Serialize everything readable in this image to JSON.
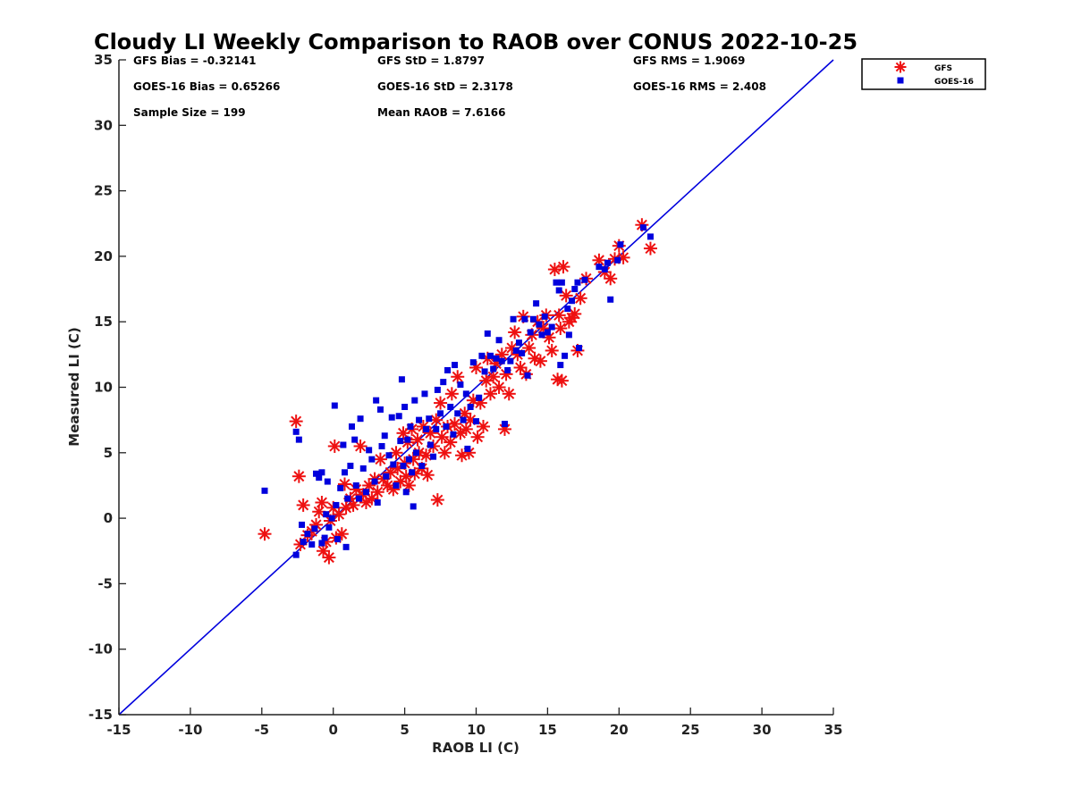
{
  "chart_data": {
    "type": "scatter",
    "title": "Cloudy LI Weekly Comparison to RAOB over CONUS 2022-10-25",
    "xlabel": "RAOB LI (C)",
    "ylabel": "Measured LI (C)",
    "xlim": [
      -15,
      35
    ],
    "ylim": [
      -15,
      35
    ],
    "xticks": [
      "-15",
      "-10",
      "-5",
      "0",
      "5",
      "10",
      "15",
      "20",
      "25",
      "30",
      "35"
    ],
    "yticks": [
      "-15",
      "-10",
      "-5",
      "0",
      "5",
      "10",
      "15",
      "20",
      "25",
      "30",
      "35"
    ],
    "grid": false,
    "legend_position": "outside-top-right",
    "reference_line": {
      "x": [
        -15,
        35
      ],
      "y": [
        -15,
        35
      ],
      "color": "#0000dd"
    },
    "stats": [
      [
        "GFS Bias = -0.32141",
        "GFS StD = 1.8797",
        "GFS RMS = 1.9069"
      ],
      [
        "GOES-16 Bias = 0.65266",
        "GOES-16 StD = 2.3178",
        "GOES-16 RMS = 2.408"
      ],
      [
        "Sample Size = 199",
        "Mean RAOB = 7.6166",
        ""
      ]
    ],
    "series": [
      {
        "name": "GFS",
        "marker": "asterisk",
        "color": "#ee1111",
        "points": [
          [
            -4.8,
            -1.2
          ],
          [
            -2.6,
            7.4
          ],
          [
            -2.4,
            3.2
          ],
          [
            -2.3,
            -2.0
          ],
          [
            -2.1,
            1.0
          ],
          [
            -1.8,
            -1.3
          ],
          [
            -1.5,
            -1.0
          ],
          [
            -1.2,
            -0.5
          ],
          [
            -1.0,
            0.5
          ],
          [
            -0.8,
            1.2
          ],
          [
            -0.7,
            -2.5
          ],
          [
            -0.5,
            -1.8
          ],
          [
            -0.3,
            -3.0
          ],
          [
            -0.2,
            -0.2
          ],
          [
            0.0,
            0.8
          ],
          [
            0.1,
            5.5
          ],
          [
            0.2,
            -1.5
          ],
          [
            0.4,
            0.3
          ],
          [
            0.6,
            -1.2
          ],
          [
            0.8,
            2.6
          ],
          [
            0.9,
            0.8
          ],
          [
            1.2,
            1.5
          ],
          [
            1.4,
            1.0
          ],
          [
            1.6,
            2.2
          ],
          [
            1.9,
            5.5
          ],
          [
            2.1,
            1.8
          ],
          [
            2.3,
            1.2
          ],
          [
            2.5,
            2.5
          ],
          [
            2.7,
            1.5
          ],
          [
            2.9,
            3.0
          ],
          [
            3.1,
            2.0
          ],
          [
            3.3,
            4.5
          ],
          [
            3.5,
            3.0
          ],
          [
            3.8,
            2.5
          ],
          [
            4.0,
            3.5
          ],
          [
            4.2,
            2.2
          ],
          [
            4.4,
            5.0
          ],
          [
            4.5,
            3.8
          ],
          [
            4.7,
            2.8
          ],
          [
            4.9,
            6.5
          ],
          [
            5.0,
            4.2
          ],
          [
            5.1,
            3.2
          ],
          [
            5.2,
            5.8
          ],
          [
            5.3,
            2.5
          ],
          [
            5.5,
            6.8
          ],
          [
            5.6,
            4.5
          ],
          [
            5.7,
            3.4
          ],
          [
            5.9,
            6.0
          ],
          [
            6.0,
            5.0
          ],
          [
            6.2,
            3.8
          ],
          [
            6.3,
            7.0
          ],
          [
            6.5,
            4.8
          ],
          [
            6.6,
            3.3
          ],
          [
            6.8,
            6.5
          ],
          [
            7.0,
            5.5
          ],
          [
            7.2,
            7.5
          ],
          [
            7.3,
            1.4
          ],
          [
            7.5,
            8.8
          ],
          [
            7.6,
            6.2
          ],
          [
            7.8,
            5.0
          ],
          [
            8.0,
            7.0
          ],
          [
            8.2,
            5.8
          ],
          [
            8.3,
            9.5
          ],
          [
            8.5,
            7.2
          ],
          [
            8.7,
            10.8
          ],
          [
            8.9,
            6.5
          ],
          [
            9.0,
            4.8
          ],
          [
            9.2,
            8.0
          ],
          [
            9.3,
            6.8
          ],
          [
            9.5,
            5.0
          ],
          [
            9.6,
            7.5
          ],
          [
            9.8,
            9.0
          ],
          [
            10.0,
            11.5
          ],
          [
            10.1,
            6.2
          ],
          [
            10.3,
            8.8
          ],
          [
            10.5,
            7.0
          ],
          [
            10.7,
            10.5
          ],
          [
            10.8,
            12.2
          ],
          [
            11.0,
            9.5
          ],
          [
            11.2,
            10.8
          ],
          [
            11.4,
            11.8
          ],
          [
            11.6,
            10.0
          ],
          [
            11.8,
            12.5
          ],
          [
            12.0,
            6.8
          ],
          [
            12.1,
            11.0
          ],
          [
            12.3,
            9.5
          ],
          [
            12.5,
            13.0
          ],
          [
            12.7,
            14.2
          ],
          [
            12.9,
            12.5
          ],
          [
            13.1,
            11.5
          ],
          [
            13.3,
            15.4
          ],
          [
            13.5,
            11.0
          ],
          [
            13.7,
            13.0
          ],
          [
            13.9,
            14.0
          ],
          [
            14.1,
            12.2
          ],
          [
            14.3,
            15.0
          ],
          [
            14.5,
            12.0
          ],
          [
            14.7,
            14.5
          ],
          [
            14.9,
            15.5
          ],
          [
            15.1,
            13.8
          ],
          [
            15.3,
            12.8
          ],
          [
            15.5,
            19.0
          ],
          [
            15.7,
            10.6
          ],
          [
            15.8,
            15.5
          ],
          [
            15.9,
            14.5
          ],
          [
            16.0,
            10.5
          ],
          [
            16.1,
            19.2
          ],
          [
            16.3,
            17.0
          ],
          [
            16.5,
            15.0
          ],
          [
            16.7,
            15.3
          ],
          [
            16.9,
            15.6
          ],
          [
            17.1,
            12.8
          ],
          [
            17.3,
            16.8
          ],
          [
            17.7,
            18.3
          ],
          [
            18.6,
            19.7
          ],
          [
            19.0,
            18.8
          ],
          [
            19.4,
            18.3
          ],
          [
            19.7,
            19.8
          ],
          [
            20.0,
            20.8
          ],
          [
            20.3,
            19.9
          ],
          [
            21.6,
            22.4
          ],
          [
            22.2,
            20.6
          ]
        ]
      },
      {
        "name": "GOES-16",
        "marker": "square",
        "color": "#0000dd",
        "points": [
          [
            -4.8,
            2.1
          ],
          [
            -2.6,
            6.6
          ],
          [
            -2.4,
            6.0
          ],
          [
            -2.6,
            -2.8
          ],
          [
            -2.2,
            -0.5
          ],
          [
            -2.1,
            -1.8
          ],
          [
            -1.8,
            -1.2
          ],
          [
            -1.5,
            -2.0
          ],
          [
            -1.3,
            -0.8
          ],
          [
            -1.2,
            3.4
          ],
          [
            -1.0,
            3.1
          ],
          [
            -0.8,
            3.5
          ],
          [
            -0.8,
            -1.9
          ],
          [
            -0.6,
            -1.5
          ],
          [
            -0.5,
            0.3
          ],
          [
            -0.4,
            2.8
          ],
          [
            -0.3,
            -0.7
          ],
          [
            -0.1,
            0.0
          ],
          [
            0.1,
            8.6
          ],
          [
            0.2,
            1.0
          ],
          [
            0.3,
            -1.6
          ],
          [
            0.5,
            2.3
          ],
          [
            0.7,
            5.6
          ],
          [
            0.8,
            3.5
          ],
          [
            0.9,
            -2.2
          ],
          [
            1.0,
            1.5
          ],
          [
            1.2,
            4.0
          ],
          [
            1.3,
            7.0
          ],
          [
            1.5,
            6.0
          ],
          [
            1.6,
            2.5
          ],
          [
            1.8,
            1.5
          ],
          [
            1.9,
            7.6
          ],
          [
            2.1,
            3.8
          ],
          [
            2.3,
            2.0
          ],
          [
            2.5,
            5.2
          ],
          [
            2.7,
            4.5
          ],
          [
            2.9,
            2.8
          ],
          [
            3.0,
            9.0
          ],
          [
            3.1,
            1.2
          ],
          [
            3.3,
            8.3
          ],
          [
            3.4,
            5.5
          ],
          [
            3.6,
            6.3
          ],
          [
            3.7,
            3.2
          ],
          [
            3.9,
            4.8
          ],
          [
            4.1,
            7.7
          ],
          [
            4.2,
            4.1
          ],
          [
            4.4,
            2.5
          ],
          [
            4.6,
            7.8
          ],
          [
            4.7,
            5.9
          ],
          [
            4.8,
            10.6
          ],
          [
            4.9,
            4.0
          ],
          [
            5.0,
            8.5
          ],
          [
            5.1,
            2.0
          ],
          [
            5.2,
            6.0
          ],
          [
            5.3,
            4.5
          ],
          [
            5.4,
            7.0
          ],
          [
            5.5,
            3.5
          ],
          [
            5.6,
            0.9
          ],
          [
            5.7,
            9.0
          ],
          [
            5.8,
            5.0
          ],
          [
            6.0,
            7.5
          ],
          [
            6.2,
            4.0
          ],
          [
            6.4,
            9.5
          ],
          [
            6.5,
            6.8
          ],
          [
            6.7,
            7.6
          ],
          [
            6.8,
            5.6
          ],
          [
            7.0,
            4.7
          ],
          [
            7.2,
            6.8
          ],
          [
            7.3,
            9.8
          ],
          [
            7.5,
            8.0
          ],
          [
            7.7,
            10.4
          ],
          [
            7.9,
            7.0
          ],
          [
            8.0,
            11.3
          ],
          [
            8.2,
            8.5
          ],
          [
            8.4,
            6.4
          ],
          [
            8.5,
            11.7
          ],
          [
            8.7,
            8.0
          ],
          [
            8.9,
            10.2
          ],
          [
            9.1,
            7.5
          ],
          [
            9.3,
            9.5
          ],
          [
            9.4,
            5.3
          ],
          [
            9.6,
            8.5
          ],
          [
            9.8,
            11.9
          ],
          [
            10.0,
            7.4
          ],
          [
            10.2,
            9.2
          ],
          [
            10.4,
            12.4
          ],
          [
            10.6,
            11.2
          ],
          [
            10.8,
            14.1
          ],
          [
            11.0,
            12.4
          ],
          [
            11.2,
            11.4
          ],
          [
            11.4,
            12.2
          ],
          [
            11.6,
            13.6
          ],
          [
            11.8,
            12.0
          ],
          [
            12.0,
            7.2
          ],
          [
            12.2,
            11.3
          ],
          [
            12.4,
            12.0
          ],
          [
            12.6,
            15.2
          ],
          [
            12.8,
            12.8
          ],
          [
            13.0,
            13.4
          ],
          [
            13.2,
            12.6
          ],
          [
            13.4,
            15.2
          ],
          [
            13.6,
            10.9
          ],
          [
            13.8,
            14.2
          ],
          [
            14.0,
            15.2
          ],
          [
            14.2,
            16.4
          ],
          [
            14.4,
            14.8
          ],
          [
            14.6,
            14.0
          ],
          [
            14.8,
            15.4
          ],
          [
            15.0,
            14.2
          ],
          [
            15.3,
            14.6
          ],
          [
            15.6,
            18.0
          ],
          [
            15.8,
            17.4
          ],
          [
            15.9,
            11.7
          ],
          [
            16.0,
            18.0
          ],
          [
            16.2,
            12.4
          ],
          [
            16.4,
            16.0
          ],
          [
            16.5,
            14.0
          ],
          [
            16.7,
            16.6
          ],
          [
            16.9,
            17.5
          ],
          [
            17.1,
            18.0
          ],
          [
            17.2,
            13.0
          ],
          [
            17.6,
            18.2
          ],
          [
            18.6,
            19.2
          ],
          [
            19.0,
            19.0
          ],
          [
            19.2,
            19.5
          ],
          [
            19.4,
            16.7
          ],
          [
            19.9,
            19.7
          ],
          [
            20.1,
            20.9
          ],
          [
            21.7,
            22.2
          ],
          [
            22.2,
            21.5
          ]
        ]
      }
    ]
  }
}
